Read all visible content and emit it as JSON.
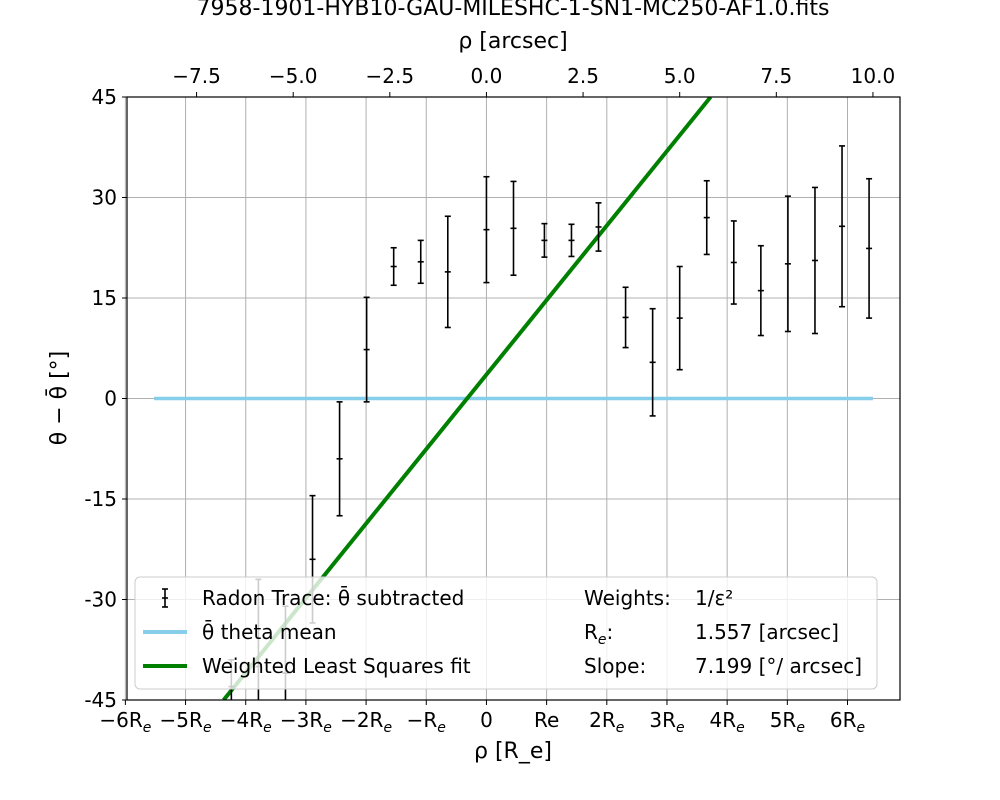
{
  "chart_data": {
    "type": "scatter",
    "title": "7958-1901-HYB10-GAU-MILESHC-1-SN1-MC250-AF1.0.fits",
    "xlabel_bottom": "ρ [R_e]",
    "xlabel_top": "ρ [arcsec]",
    "ylabel": "θ − θ̄ [°]",
    "xlim_arcsec": [
      -9.3,
      10.7
    ],
    "ylim": [
      -45,
      45
    ],
    "grid": true,
    "yticks": [
      -45,
      -30,
      -15,
      0,
      15,
      30,
      45
    ],
    "ytick_labels": [
      "-45",
      "-30",
      "-15",
      "0",
      "15",
      "30",
      "45"
    ],
    "top_xticks": [
      -7.5,
      -5.0,
      -2.5,
      0.0,
      2.5,
      5.0,
      7.5,
      10.0
    ],
    "top_xtick_labels": [
      "−7.5",
      "−5.0",
      "−2.5",
      "0.0",
      "2.5",
      "5.0",
      "7.5",
      "10.0"
    ],
    "bottom_xticks_re": [
      -6,
      -5,
      -4,
      -3,
      -2,
      -1,
      0,
      1,
      2,
      3,
      4,
      5,
      6
    ],
    "bottom_xtick_labels": [
      "−6R_e",
      "−5R_e",
      "−4R_e",
      "−3R_e",
      "−2R_e",
      "−R_e",
      "0",
      "Re",
      "2R_e",
      "3R_e",
      "4R_e",
      "5R_e",
      "6R_e"
    ],
    "series": [
      {
        "name": "Radon Trace: θ̄ subtracted",
        "color": "#000000",
        "kind": "errorbar",
        "points": [
          {
            "x": -6.6,
            "y": -43.0,
            "err": 4.0
          },
          {
            "x": -5.9,
            "y": -40.0,
            "err": 13.0
          },
          {
            "x": -5.2,
            "y": -41.0,
            "err": 10.0
          },
          {
            "x": -4.5,
            "y": -24.0,
            "err": 9.5
          },
          {
            "x": -3.8,
            "y": -9.0,
            "err": 8.5
          },
          {
            "x": -3.1,
            "y": 7.3,
            "err": 7.8
          },
          {
            "x": -2.4,
            "y": 19.7,
            "err": 2.8
          },
          {
            "x": -1.7,
            "y": 20.4,
            "err": 3.2
          },
          {
            "x": -1.0,
            "y": 18.9,
            "err": 8.3
          },
          {
            "x": 0.0,
            "y": 25.2,
            "err": 7.9
          },
          {
            "x": 0.7,
            "y": 25.4,
            "err": 7.0
          },
          {
            "x": 1.5,
            "y": 23.6,
            "err": 2.5
          },
          {
            "x": 2.2,
            "y": 23.6,
            "err": 2.4
          },
          {
            "x": 2.9,
            "y": 25.6,
            "err": 3.6
          },
          {
            "x": 3.6,
            "y": 12.1,
            "err": 4.5
          },
          {
            "x": 4.3,
            "y": 5.4,
            "err": 8.0
          },
          {
            "x": 5.0,
            "y": 12.0,
            "err": 7.7
          },
          {
            "x": 5.7,
            "y": 27.0,
            "err": 5.5
          },
          {
            "x": 6.4,
            "y": 20.3,
            "err": 6.2
          },
          {
            "x": 7.1,
            "y": 16.1,
            "err": 6.7
          },
          {
            "x": 7.8,
            "y": 20.1,
            "err": 10.1
          },
          {
            "x": 8.5,
            "y": 20.6,
            "err": 10.9
          },
          {
            "x": 9.2,
            "y": 25.7,
            "err": 12.0
          },
          {
            "x": 9.9,
            "y": 22.4,
            "err": 10.4
          }
        ]
      },
      {
        "name": "θ̄ theta mean",
        "color": "#87ceeb",
        "kind": "line",
        "x": [
          -8.6,
          10.0
        ],
        "y": [
          0,
          0
        ]
      },
      {
        "name": "Weighted Least Squares fit",
        "color": "#008000",
        "kind": "line",
        "x": [
          -6.8,
          5.8
        ],
        "y": [
          -45,
          45
        ]
      }
    ],
    "legend": {
      "placement": "lower-right",
      "entries": [
        "Radon Trace: θ̄ subtracted",
        "θ̄ theta mean",
        "Weighted Least Squares fit"
      ],
      "info": [
        {
          "key": "Weights:",
          "value": "1/ε²"
        },
        {
          "key": "R_e:",
          "value": "1.557 [arcsec]"
        },
        {
          "key": "Slope:",
          "value": "7.199 [°/ arcsec]"
        }
      ]
    }
  }
}
